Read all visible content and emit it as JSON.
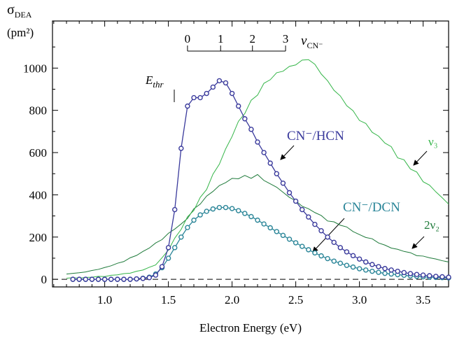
{
  "chart_data": {
    "type": "line",
    "x_label": "Electron Energy (eV)",
    "y_label": "σ",
    "y_label_sub": "DEA",
    "y_unit": "(pm²)",
    "threshold_label": "E",
    "threshold_sub": "thr",
    "vib_label": "v",
    "vib_label_sub": "CN⁻",
    "vib_levels": [
      0,
      1,
      2,
      3
    ],
    "vib_x": [
      1.65,
      1.91,
      2.16,
      2.42
    ],
    "reference_line": 0,
    "xlim": [
      0.59,
      3.7
    ],
    "ylim": [
      -36,
      1223
    ],
    "xticks": [
      {
        "value": 1,
        "label": "1.0"
      },
      {
        "value": 1.5,
        "label": "1.5"
      },
      {
        "value": 2,
        "label": "2.0"
      },
      {
        "value": 2.5,
        "label": "2.5"
      },
      {
        "value": 3,
        "label": "3.0"
      },
      {
        "value": 3.5,
        "label": "3.5"
      }
    ],
    "x_minor_ticks": [
      0.6,
      0.7,
      0.8,
      0.9,
      1.1,
      1.2,
      1.3,
      1.4,
      1.6,
      1.7,
      1.8,
      1.9,
      2.1,
      2.2,
      2.3,
      2.4,
      2.6,
      2.7,
      2.8,
      2.9,
      3.1,
      3.2,
      3.3,
      3.4,
      3.6,
      3.7
    ],
    "yticks": [
      0,
      200,
      400,
      600,
      800,
      1000
    ],
    "y_minor_ticks": [
      100,
      300,
      500,
      700,
      900,
      1100
    ],
    "series": [
      {
        "name": "CN⁻/HCN",
        "color": "#3a3a9c",
        "marker": "circle",
        "x": [
          0.75,
          0.8,
          0.85,
          0.9,
          0.95,
          1.0,
          1.05,
          1.1,
          1.15,
          1.2,
          1.25,
          1.3,
          1.35,
          1.4,
          1.45,
          1.5,
          1.55,
          1.6,
          1.65,
          1.7,
          1.75,
          1.8,
          1.85,
          1.9,
          1.95,
          2.0,
          2.05,
          2.1,
          2.15,
          2.2,
          2.25,
          2.3,
          2.35,
          2.4,
          2.45,
          2.5,
          2.55,
          2.6,
          2.65,
          2.7,
          2.75,
          2.8,
          2.85,
          2.9,
          2.95,
          3.0,
          3.05,
          3.1,
          3.15,
          3.2,
          3.25,
          3.3,
          3.35,
          3.4,
          3.45,
          3.5,
          3.55,
          3.6,
          3.65,
          3.7
        ],
        "values": [
          0,
          0,
          0,
          0,
          0,
          0,
          0,
          0,
          0,
          0,
          2,
          4,
          8,
          20,
          60,
          150,
          330,
          620,
          820,
          860,
          860,
          880,
          910,
          940,
          930,
          880,
          820,
          760,
          710,
          650,
          600,
          550,
          500,
          455,
          410,
          370,
          330,
          295,
          260,
          230,
          200,
          175,
          150,
          130,
          112,
          96,
          82,
          70,
          60,
          51,
          44,
          38,
          32,
          27,
          23,
          20,
          17,
          14,
          12,
          10
        ]
      },
      {
        "name": "CN⁻/DCN",
        "color": "#2a8598",
        "marker": "circle",
        "x": [
          0.75,
          0.8,
          0.85,
          0.9,
          0.95,
          1.0,
          1.05,
          1.1,
          1.15,
          1.2,
          1.25,
          1.3,
          1.35,
          1.4,
          1.45,
          1.5,
          1.55,
          1.6,
          1.65,
          1.7,
          1.75,
          1.8,
          1.85,
          1.9,
          1.95,
          2.0,
          2.05,
          2.1,
          2.15,
          2.2,
          2.25,
          2.3,
          2.35,
          2.4,
          2.45,
          2.5,
          2.55,
          2.6,
          2.65,
          2.7,
          2.75,
          2.8,
          2.85,
          2.9,
          2.95,
          3.0,
          3.05,
          3.1,
          3.15,
          3.2,
          3.25,
          3.3,
          3.35,
          3.4,
          3.45,
          3.5,
          3.55,
          3.6,
          3.65,
          3.7
        ],
        "values": [
          0,
          0,
          0,
          0,
          0,
          0,
          0,
          0,
          0,
          0,
          2,
          5,
          10,
          25,
          55,
          100,
          150,
          200,
          245,
          280,
          305,
          322,
          333,
          340,
          340,
          335,
          325,
          312,
          297,
          280,
          262,
          244,
          226,
          208,
          190,
          173,
          156,
          140,
          125,
          111,
          98,
          86,
          76,
          66,
          58,
          50,
          44,
          38,
          33,
          28,
          25,
          22,
          19,
          16,
          14,
          12,
          10,
          9,
          8,
          7
        ]
      },
      {
        "name": "ν₃",
        "color": "#34b548",
        "marker": "none",
        "x": [
          0.7,
          0.75,
          0.8,
          0.85,
          0.9,
          0.95,
          1.0,
          1.05,
          1.1,
          1.15,
          1.2,
          1.25,
          1.3,
          1.35,
          1.4,
          1.45,
          1.5,
          1.55,
          1.6,
          1.65,
          1.7,
          1.75,
          1.8,
          1.85,
          1.9,
          1.95,
          2.0,
          2.05,
          2.1,
          2.15,
          2.2,
          2.25,
          2.3,
          2.35,
          2.4,
          2.45,
          2.5,
          2.55,
          2.6,
          2.65,
          2.7,
          2.75,
          2.8,
          2.85,
          2.9,
          2.95,
          3.0,
          3.05,
          3.1,
          3.15,
          3.2,
          3.25,
          3.3,
          3.35,
          3.4,
          3.45,
          3.5,
          3.55,
          3.6,
          3.65,
          3.7
        ],
        "values": [
          5,
          8,
          5,
          9,
          10,
          14,
          13,
          19,
          21,
          27,
          29,
          38,
          44,
          57,
          68,
          102,
          138,
          195,
          236,
          296,
          326,
          388,
          425,
          498,
          545,
          618,
          676,
          748,
          785,
          848,
          872,
          928,
          945,
          978,
          985,
          1008,
          1015,
          1038,
          1040,
          1018,
          972,
          940,
          895,
          868,
          822,
          798,
          752,
          738,
          696,
          678,
          645,
          628,
          575,
          566,
          522,
          508,
          462,
          446,
          414,
          386,
          356
        ]
      },
      {
        "name": "2ν₂",
        "color": "#1e7a3a",
        "marker": "none",
        "x": [
          0.7,
          0.75,
          0.8,
          0.85,
          0.9,
          0.95,
          1.0,
          1.05,
          1.1,
          1.15,
          1.2,
          1.25,
          1.3,
          1.35,
          1.4,
          1.45,
          1.5,
          1.55,
          1.6,
          1.65,
          1.7,
          1.75,
          1.8,
          1.85,
          1.9,
          1.95,
          2.0,
          2.05,
          2.1,
          2.15,
          2.2,
          2.25,
          2.3,
          2.35,
          2.4,
          2.45,
          2.5,
          2.55,
          2.6,
          2.65,
          2.7,
          2.75,
          2.8,
          2.85,
          2.9,
          2.95,
          3.0,
          3.05,
          3.1,
          3.15,
          3.2,
          3.25,
          3.3,
          3.35,
          3.4,
          3.45,
          3.5,
          3.55,
          3.6,
          3.65,
          3.7
        ],
        "values": [
          25,
          28,
          31,
          35,
          42,
          47,
          56,
          64,
          76,
          84,
          102,
          113,
          132,
          148,
          172,
          188,
          218,
          238,
          262,
          288,
          334,
          356,
          394,
          416,
          444,
          458,
          478,
          476,
          492,
          478,
          496,
          468,
          452,
          436,
          412,
          388,
          372,
          346,
          334,
          316,
          302,
          276,
          272,
          256,
          248,
          226,
          212,
          198,
          192,
          172,
          162,
          148,
          142,
          132,
          126,
          112,
          110,
          102,
          96,
          88,
          82
        ]
      }
    ]
  }
}
